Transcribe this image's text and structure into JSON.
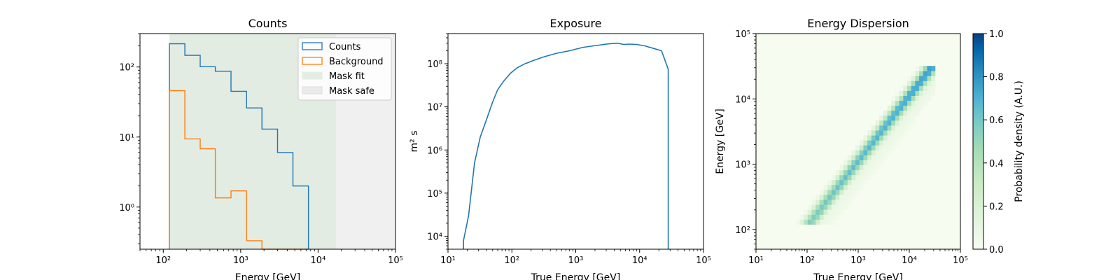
{
  "colors": {
    "counts": "#1f77b4",
    "background": "#ff7f0e",
    "mask_fit": "#d8e6d8",
    "mask_safe": "#e6e6e6",
    "cmap_low": "#f7fcf0",
    "cmap_mid": "#7bccc4",
    "cmap_high": "#084081"
  },
  "chart_data": [
    {
      "type": "line",
      "title": "Counts",
      "xlabel": "Energy [GeV]",
      "ylabel": "",
      "xscale": "log",
      "yscale": "log",
      "xlim": [
        50,
        100000
      ],
      "ylim": [
        0.25,
        300
      ],
      "xticks": [
        {
          "value": 100,
          "label": "10²"
        },
        {
          "value": 1000,
          "label": "10³"
        },
        {
          "value": 10000,
          "label": "10⁴"
        },
        {
          "value": 100000,
          "label": "10⁵"
        }
      ],
      "yticks": [
        {
          "value": 1,
          "label": "10⁰"
        },
        {
          "value": 10,
          "label": "10¹"
        },
        {
          "value": 100,
          "label": "10²"
        }
      ],
      "bin_edges": [
        120,
        190,
        300,
        470,
        750,
        1190,
        1880,
        2990,
        4730,
        7500
      ],
      "series": [
        {
          "name": "Counts",
          "values": [
            215,
            147,
            101,
            87,
            45,
            26,
            13,
            6,
            2
          ]
        },
        {
          "name": "Background",
          "values": [
            46,
            9.4,
            6.8,
            1.35,
            1.7,
            0.33,
            0.2,
            0.2,
            0.2
          ]
        }
      ],
      "masks": [
        {
          "name": "Mask fit",
          "range": [
            120,
            17000
          ]
        },
        {
          "name": "Mask safe",
          "range": [
            120,
            100000
          ]
        }
      ],
      "legend": {
        "position": "top-right",
        "entries": [
          "Counts",
          "Background",
          "Mask fit",
          "Mask safe"
        ]
      },
      "grid": false
    },
    {
      "type": "line",
      "title": "Exposure",
      "xlabel": "True Energy [GeV]",
      "ylabel": "m² s",
      "xscale": "log",
      "yscale": "log",
      "xlim": [
        10,
        100000
      ],
      "ylim": [
        5000,
        500000000
      ],
      "xticks": [
        {
          "value": 10,
          "label": "10¹"
        },
        {
          "value": 100,
          "label": "10²"
        },
        {
          "value": 1000,
          "label": "10³"
        },
        {
          "value": 10000,
          "label": "10⁴"
        },
        {
          "value": 100000,
          "label": "10⁵"
        }
      ],
      "yticks": [
        {
          "value": 10000,
          "label": "10⁴"
        },
        {
          "value": 100000,
          "label": "10⁵"
        },
        {
          "value": 1000000,
          "label": "10⁶"
        },
        {
          "value": 10000000,
          "label": "10⁷"
        },
        {
          "value": 100000000,
          "label": "10⁸"
        }
      ],
      "series": [
        {
          "name": "Exposure",
          "x": [
            17.5,
            17.5,
            21,
            26,
            32,
            40,
            50,
            60,
            75,
            95,
            120,
            160,
            220,
            320,
            500,
            800,
            1300,
            2100,
            3300,
            4500,
            5600,
            7000,
            9000,
            12000,
            16000,
            22000,
            28000,
            28000
          ],
          "y": [
            5000,
            8000,
            30000,
            500000,
            2000000,
            5000000,
            13000000,
            25000000,
            40000000,
            60000000,
            80000000,
            100000000,
            120000000,
            145000000,
            175000000,
            200000000,
            240000000,
            265000000,
            290000000,
            300000000,
            280000000,
            285000000,
            280000000,
            260000000,
            230000000,
            200000000,
            75000000,
            5000
          ]
        }
      ],
      "grid": false
    },
    {
      "type": "heatmap",
      "title": "Energy Dispersion",
      "xlabel": "True Energy [GeV]",
      "ylabel": "Energy [GeV]",
      "xscale": "log",
      "yscale": "log",
      "xlim": [
        10,
        100000
      ],
      "ylim": [
        50,
        100000
      ],
      "xticks": [
        {
          "value": 10,
          "label": "10¹"
        },
        {
          "value": 100,
          "label": "10²"
        },
        {
          "value": 1000,
          "label": "10³"
        },
        {
          "value": 10000,
          "label": "10⁴"
        },
        {
          "value": 100000,
          "label": "10⁵"
        }
      ],
      "yticks": [
        {
          "value": 100,
          "label": "10²"
        },
        {
          "value": 1000,
          "label": "10³"
        },
        {
          "value": 10000,
          "label": "10⁴"
        },
        {
          "value": 100000,
          "label": "10⁵"
        }
      ],
      "true_energy_range": [
        50,
        32000
      ],
      "reco_energy_range": [
        120,
        32000
      ],
      "colorbar": {
        "label": "Probability density (A.U.)",
        "ticks": [
          {
            "value": 0.0,
            "label": "0.0"
          },
          {
            "value": 0.2,
            "label": "0.2"
          },
          {
            "value": 0.4,
            "label": "0.4"
          },
          {
            "value": 0.6,
            "label": "0.6"
          },
          {
            "value": 0.8,
            "label": "0.8"
          },
          {
            "value": 1.0,
            "label": "1.0"
          }
        ]
      },
      "grid": false
    }
  ]
}
